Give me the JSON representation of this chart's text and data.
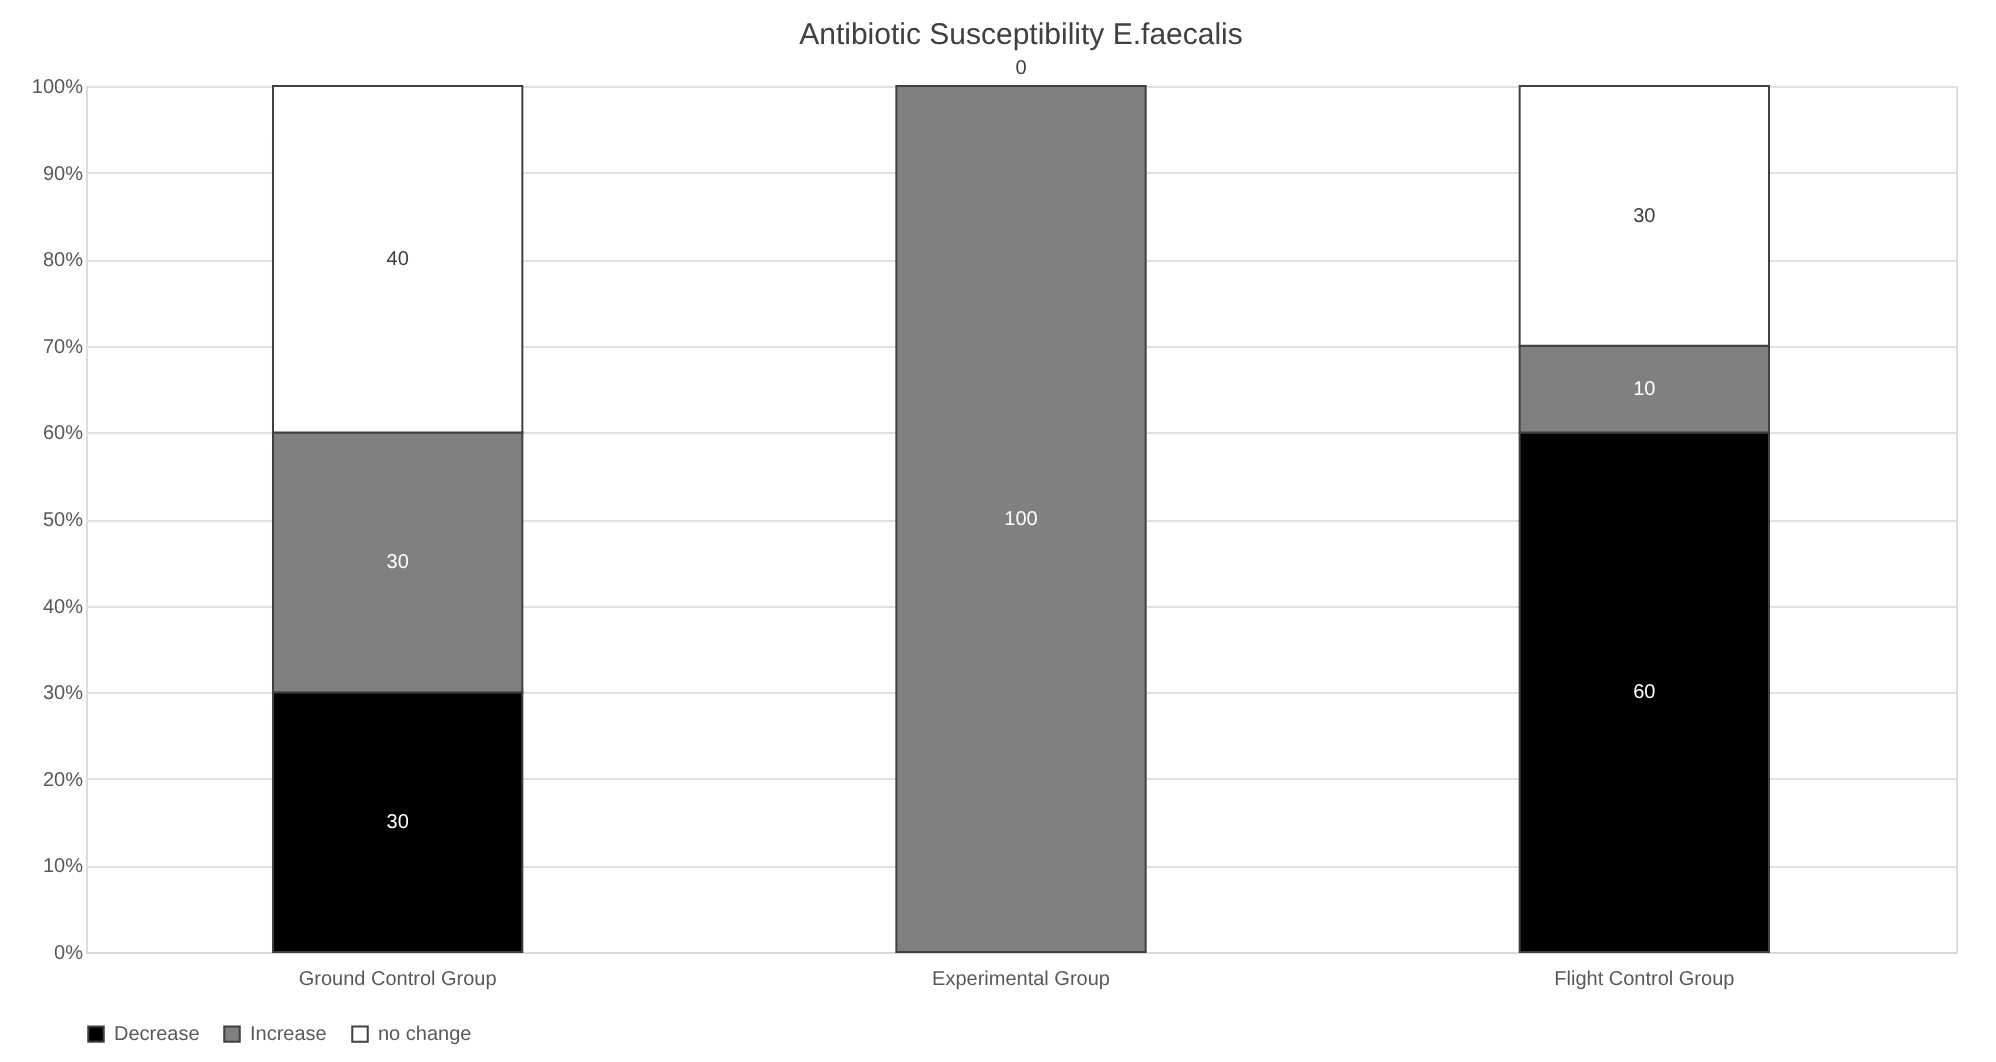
{
  "chart_data": {
    "type": "bar",
    "title": "Antibiotic Susceptibility E.faecalis",
    "categories": [
      "Ground Control Group",
      "Experimental Group",
      "Flight Control Group"
    ],
    "stacked": true,
    "series": [
      {
        "name": "Decrease",
        "color": "#000000",
        "values": [
          30,
          0,
          60
        ],
        "value_labels": [
          "30",
          null,
          "60"
        ]
      },
      {
        "name": "Increase",
        "color": "#808080",
        "values": [
          30,
          100,
          10
        ],
        "value_labels": [
          "30",
          "100",
          "10"
        ]
      },
      {
        "name": "no change",
        "color": "#ffffff",
        "values": [
          40,
          0,
          30
        ],
        "value_labels": [
          "40",
          "0",
          "30"
        ]
      }
    ],
    "ylim": [
      0,
      100
    ],
    "yticks": [
      {
        "value": 0,
        "label": "0%"
      },
      {
        "value": 10,
        "label": "10%"
      },
      {
        "value": 20,
        "label": "20%"
      },
      {
        "value": 30,
        "label": "30%"
      },
      {
        "value": 40,
        "label": "40%"
      },
      {
        "value": 50,
        "label": "50%"
      },
      {
        "value": 60,
        "label": "60%"
      },
      {
        "value": 70,
        "label": "70%"
      },
      {
        "value": 80,
        "label": "80%"
      },
      {
        "value": 90,
        "label": "90%"
      },
      {
        "value": 100,
        "label": "100%"
      }
    ],
    "grid": "y",
    "legend": "bottom"
  }
}
